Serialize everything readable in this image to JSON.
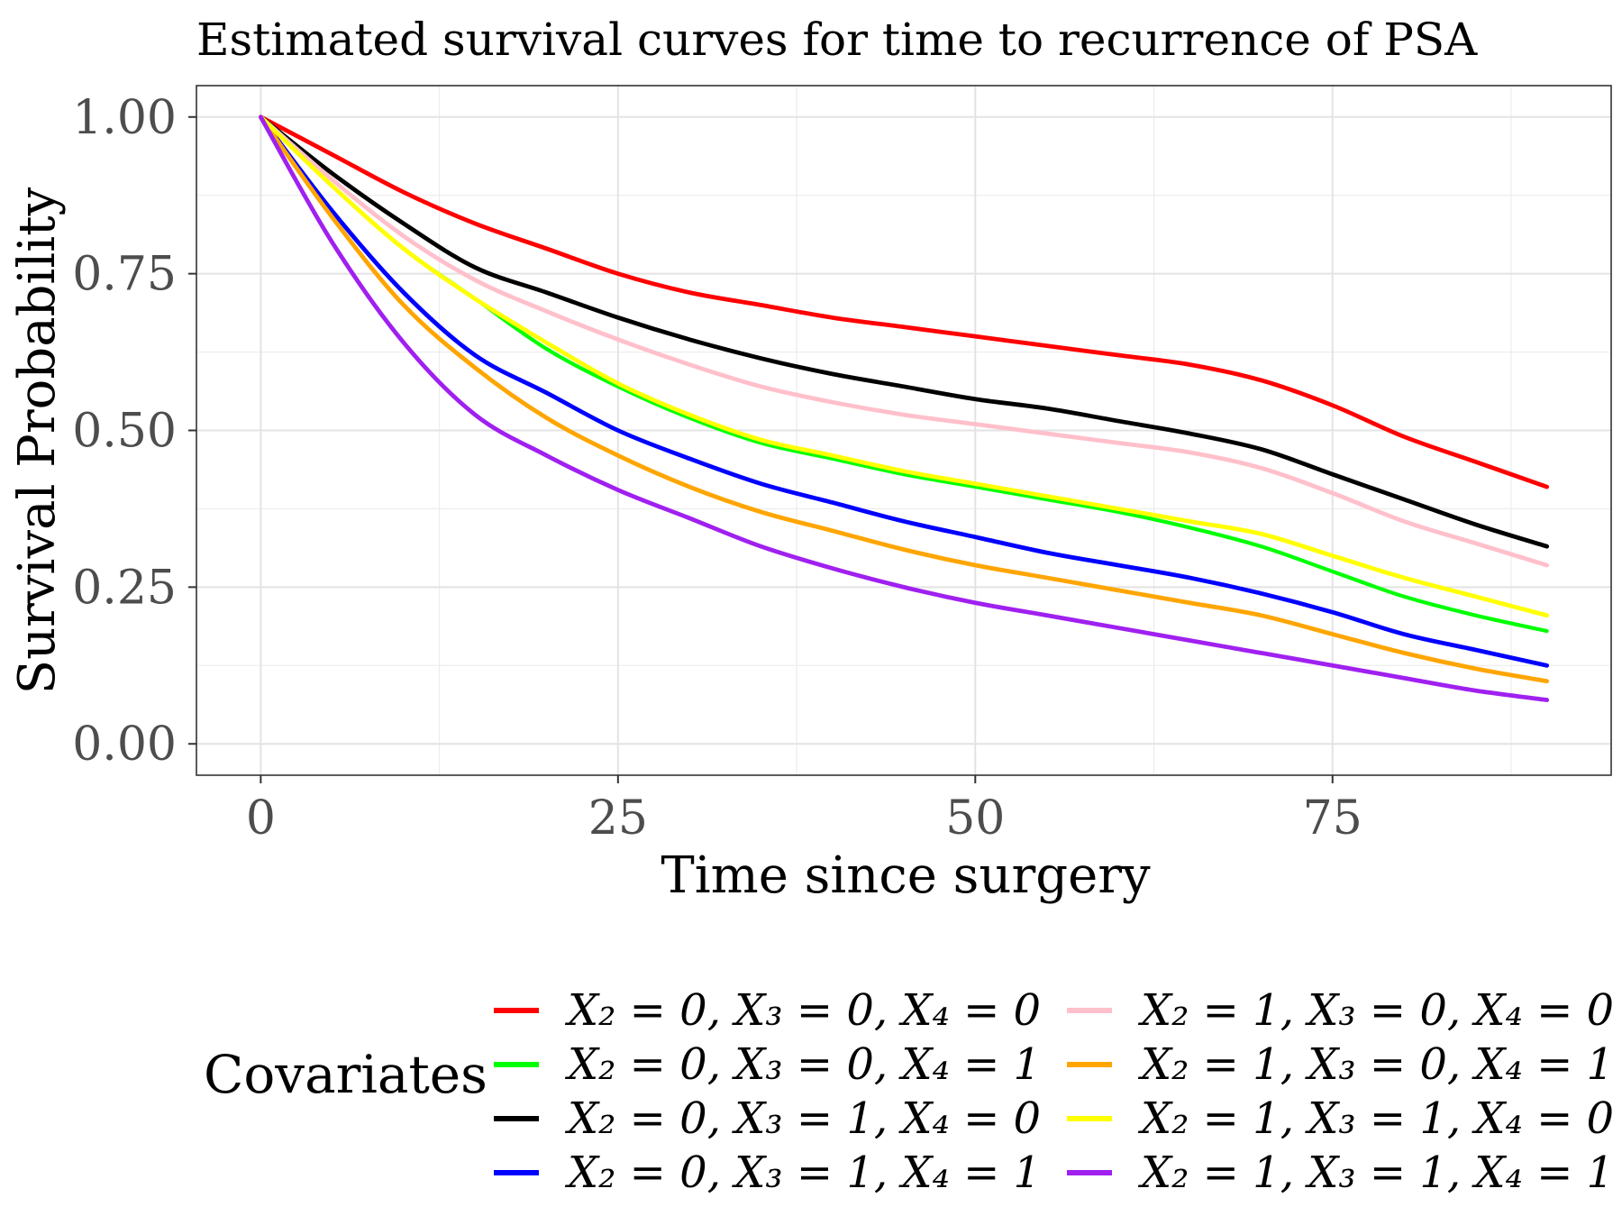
{
  "chart_data": {
    "type": "line",
    "title": "Estimated survival curves for time to recurrence of PSA",
    "xlabel": "Time since surgery",
    "ylabel": "Survival Probability",
    "xlim": [
      -4.5,
      94.5
    ],
    "ylim": [
      -0.05,
      1.05
    ],
    "x_ticks": [
      0,
      25,
      50,
      75
    ],
    "y_ticks": [
      0,
      0.25,
      0.5,
      0.75,
      1
    ],
    "x_tick_labels": [
      "0",
      "25",
      "50",
      "75"
    ],
    "y_tick_labels": [
      "0.00",
      "0.25",
      "0.50",
      "0.75",
      "1.00"
    ],
    "grid": true,
    "legend": {
      "title": "Covariates",
      "position": "bottom"
    },
    "x": [
      0,
      5,
      10,
      15,
      20,
      25,
      30,
      35,
      40,
      45,
      50,
      55,
      60,
      65,
      70,
      75,
      80,
      85,
      90
    ],
    "series": [
      {
        "name": "X2 = 0, X3 = 0, X4 = 0",
        "label": "X₂ = 0, X₃ = 0, X₄ = 0",
        "color": "#FF0000",
        "values": [
          1.0,
          0.94,
          0.88,
          0.83,
          0.79,
          0.75,
          0.72,
          0.7,
          0.68,
          0.665,
          0.65,
          0.635,
          0.62,
          0.605,
          0.58,
          0.54,
          0.49,
          0.45,
          0.41
        ]
      },
      {
        "name": "X2 = 0, X3 = 0, X4 = 1",
        "label": "X₂ = 0, X₃ = 0, X₄ = 1",
        "color": "#00FF00",
        "values": [
          1.0,
          0.89,
          0.79,
          0.71,
          0.63,
          0.57,
          0.52,
          0.48,
          0.455,
          0.43,
          0.41,
          0.39,
          0.37,
          0.345,
          0.315,
          0.275,
          0.235,
          0.205,
          0.18
        ]
      },
      {
        "name": "X2 = 0, X3 = 1, X4 = 0",
        "label": "X₂ = 0, X₃ = 1, X₄ = 0",
        "color": "#000000",
        "values": [
          1.0,
          0.91,
          0.83,
          0.76,
          0.72,
          0.68,
          0.645,
          0.615,
          0.59,
          0.57,
          0.55,
          0.535,
          0.515,
          0.495,
          0.47,
          0.43,
          0.39,
          0.35,
          0.315
        ]
      },
      {
        "name": "X2 = 0, X3 = 1, X4 = 1",
        "label": "X₂ = 0, X₃ = 1, X₄ = 1",
        "color": "#0000FF",
        "values": [
          1.0,
          0.85,
          0.72,
          0.62,
          0.56,
          0.5,
          0.455,
          0.415,
          0.385,
          0.355,
          0.33,
          0.305,
          0.285,
          0.265,
          0.24,
          0.21,
          0.175,
          0.15,
          0.125
        ]
      },
      {
        "name": "X2 = 1, X3 = 0, X4 = 0",
        "label": "X₂ = 1, X₃ = 0, X₄ = 0",
        "color": "#FFC0CB",
        "values": [
          1.0,
          0.9,
          0.81,
          0.74,
          0.69,
          0.645,
          0.605,
          0.57,
          0.545,
          0.525,
          0.51,
          0.495,
          0.48,
          0.465,
          0.44,
          0.4,
          0.355,
          0.32,
          0.285
        ]
      },
      {
        "name": "X2 = 1, X3 = 0, X4 = 1",
        "label": "X₂ = 1, X₃ = 0, X₄ = 1",
        "color": "#FFA500",
        "values": [
          1.0,
          0.84,
          0.7,
          0.6,
          0.52,
          0.46,
          0.41,
          0.37,
          0.34,
          0.31,
          0.285,
          0.265,
          0.245,
          0.225,
          0.205,
          0.175,
          0.145,
          0.12,
          0.1
        ]
      },
      {
        "name": "X2 = 1, X3 = 1, X4 = 0",
        "label": "X₂ = 1, X₃ = 1, X₄ = 0",
        "color": "#FFFF00",
        "values": [
          1.0,
          0.89,
          0.79,
          0.71,
          0.64,
          0.575,
          0.525,
          0.485,
          0.46,
          0.435,
          0.415,
          0.395,
          0.375,
          0.355,
          0.335,
          0.3,
          0.265,
          0.235,
          0.205
        ]
      },
      {
        "name": "X2 = 1, X3 = 1, X4 = 1",
        "label": "X₂ = 1, X₃ = 1, X₄ = 1",
        "color": "#A020F0",
        "values": [
          1.0,
          0.8,
          0.64,
          0.525,
          0.46,
          0.405,
          0.36,
          0.315,
          0.28,
          0.25,
          0.225,
          0.205,
          0.185,
          0.165,
          0.145,
          0.125,
          0.105,
          0.085,
          0.07
        ]
      }
    ]
  }
}
